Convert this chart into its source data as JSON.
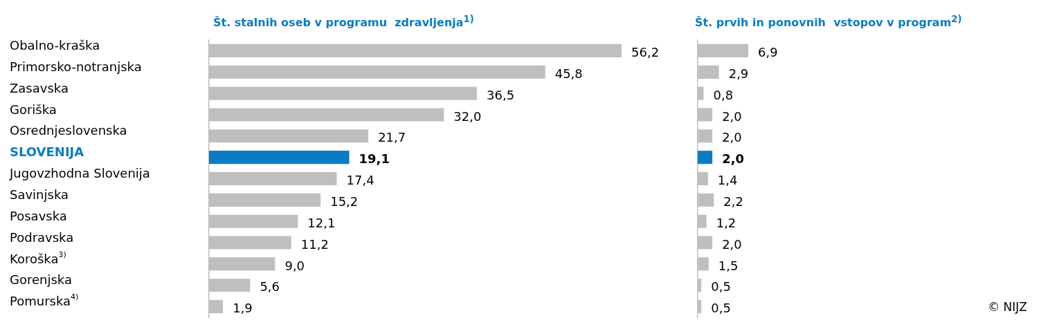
{
  "chart_data": [
    {
      "type": "bar",
      "orientation": "horizontal",
      "title": "Št. stalnih oseb v programu  zdravljenja$^{1)}$",
      "categories": [
        "Obalno-kraška",
        "Primorsko-notranjska",
        "Zasavska",
        "Goriška",
        "Osrednjeslovenska",
        "SLOVENIJA",
        "Jugovzhodna Slovenija",
        "Savinjska",
        "Posavska",
        "Podravska",
        "Koroška$^{3)}$",
        "Gorenjska",
        "Pomurska$^{4)}$"
      ],
      "values": [
        56.2,
        45.8,
        36.5,
        32.0,
        21.7,
        19.1,
        17.4,
        15.2,
        12.1,
        11.2,
        9.0,
        5.6,
        1.9
      ],
      "colors": [
        "#bfbfbf",
        "#bfbfbf",
        "#bfbfbf",
        "#bfbfbf",
        "#bfbfbf",
        "#0a7cc4",
        "#bfbfbf",
        "#bfbfbf",
        "#bfbfbf",
        "#bfbfbf",
        "#bfbfbf",
        "#bfbfbf",
        "#bfbfbf"
      ],
      "value_labels": [
        "56,2",
        "45,8",
        "36,5",
        "32,0",
        "21,7",
        "19,1",
        "17,4",
        "15,2",
        "12,1",
        "11,2",
        "9,0",
        "5,6",
        "1,9"
      ]
    },
    {
      "type": "bar",
      "orientation": "horizontal",
      "title": "Št. prvih in ponovnih  vstopov v program$^{2)}$",
      "categories": [
        null,
        null,
        null,
        null,
        null,
        null,
        null,
        null,
        null,
        null,
        null,
        null,
        null
      ],
      "values": [
        6.9,
        2.9,
        0.8,
        2.0,
        2.0,
        2.0,
        1.4,
        2.2,
        1.2,
        2.0,
        1.5,
        0.5,
        0.5
      ],
      "colors": [
        "#bfbfbf",
        "#bfbfbf",
        "#bfbfbf",
        "#bfbfbf",
        "#bfbfbf",
        "#0a7cc4",
        "#bfbfbf",
        "#bfbfbf",
        "#bfbfbf",
        "#bfbfbf",
        "#bfbfbf",
        "#bfbfbf",
        "#bfbfbf"
      ],
      "value_labels": [
        "6,9",
        "2,9",
        "0,8",
        "2,0",
        "2,0",
        "2,0",
        "1,4",
        "2,2",
        "1,2",
        "2,0",
        "1,5",
        "0,5",
        "0,5"
      ],
      "annotations": [
        "© NIJZ"
      ]
    }
  ]
}
